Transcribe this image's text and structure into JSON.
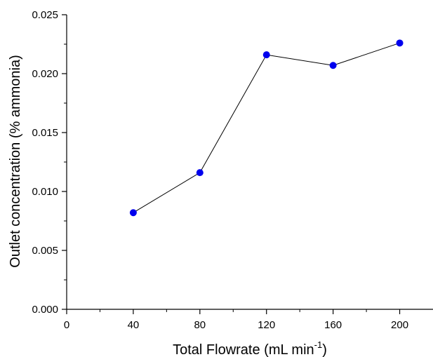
{
  "chart_data": {
    "type": "line",
    "xlabel": "Total Flowrate (mL min",
    "xlabel_sup": "-1",
    "xlabel_close": ")",
    "ylabel": "Outlet concentration (% ammonia)",
    "xlim": [
      0,
      220
    ],
    "ylim": [
      0,
      0.025
    ],
    "x_ticks": [
      0,
      40,
      80,
      120,
      160,
      200
    ],
    "x_tick_labels": [
      "0",
      "40",
      "80",
      "120",
      "160",
      "200"
    ],
    "x_minor_ticks": [
      20,
      60,
      100,
      140,
      180
    ],
    "y_ticks": [
      0,
      0.005,
      0.01,
      0.015,
      0.02,
      0.025
    ],
    "y_tick_labels": [
      "0.000",
      "0.005",
      "0.010",
      "0.015",
      "0.020",
      "0.025"
    ],
    "y_minor_ticks": [
      0.0025,
      0.0075,
      0.0125,
      0.0175,
      0.0225
    ],
    "grid": false,
    "series": [
      {
        "x": [
          40,
          80,
          120,
          160,
          200
        ],
        "y": [
          0.0082,
          0.0116,
          0.0216,
          0.0207,
          0.0226
        ],
        "marker_color": "#0000ee",
        "line_color": "#000000"
      }
    ]
  }
}
